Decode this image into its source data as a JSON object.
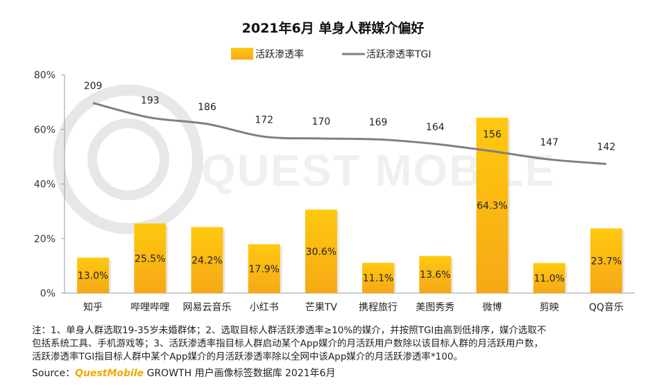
{
  "chart_data": {
    "type": "bar",
    "title": "2021年6月 单身人群媒介偏好",
    "categories": [
      "知乎",
      "哔哩哔哩",
      "网易云音乐",
      "小红书",
      "芒果TV",
      "携程旅行",
      "美图秀秀",
      "微博",
      "剪映",
      "QQ音乐"
    ],
    "series": [
      {
        "name": "活跃渗透率",
        "type": "bar",
        "axis": "left",
        "color": "#f8b80a",
        "values": [
          13.0,
          25.5,
          24.2,
          17.9,
          30.6,
          11.1,
          13.6,
          64.3,
          11.0,
          23.7
        ],
        "labels": [
          "13.0%",
          "25.5%",
          "24.2%",
          "17.9%",
          "30.6%",
          "11.1%",
          "13.6%",
          "64.3%",
          "11.0%",
          "23.7%"
        ]
      },
      {
        "name": "活跃渗透率TGI",
        "type": "line",
        "axis": "right",
        "color": "#7f7f7f",
        "values": [
          209,
          193,
          186,
          172,
          170,
          169,
          164,
          156,
          147,
          142
        ],
        "labels": [
          "209",
          "193",
          "186",
          "172",
          "170",
          "169",
          "164",
          "156",
          "147",
          "142"
        ]
      }
    ],
    "y_ticks": [
      "0%",
      "20%",
      "40%",
      "60%",
      "80%"
    ],
    "ylim": [
      0,
      80
    ],
    "tgi_ylim": [
      0,
      240
    ],
    "grid": false,
    "legend": "top-center"
  },
  "watermark": "QUEST MOBILE",
  "notes": [
    "注：1、单身人群选取19-35岁未婚群体；2、选取目标人群活跃渗透率≥10%的媒介，并按照TGI由高到低排序，媒介选取不",
    "包括系统工具、手机游戏等；3、活跃渗透率指目标人群启动某个App媒介的月活跃用户数除以该目标人群的月活跃用户数，",
    "活跃渗透率TGI指目标人群中某个App媒介的月活跃渗透率除以全网中该App媒介的月活跃渗透率*100。"
  ],
  "source": {
    "prefix": "Source：",
    "brand": "QuestMobile",
    "suffix": " GROWTH 用户画像标签数据库 2021年6月"
  }
}
